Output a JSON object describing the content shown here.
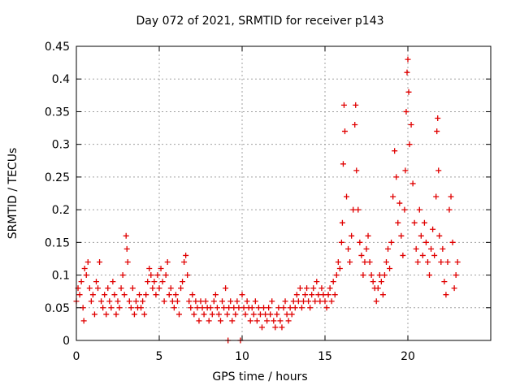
{
  "chart_data": {
    "type": "scatter",
    "title": "Day 072 of 2021, SRMTID for receiver p143",
    "xlabel": "GPS time / hours",
    "ylabel": "SRMTID / TECUs",
    "xlim": [
      0,
      25
    ],
    "ylim": [
      0,
      0.45
    ],
    "xticks": [
      0,
      5,
      10,
      15,
      20
    ],
    "yticks": [
      0,
      0.05,
      0.1,
      0.15,
      0.2,
      0.25,
      0.3,
      0.35,
      0.4,
      0.45
    ],
    "ytick_labels": [
      "0",
      "0.05",
      "0.1",
      "0.15",
      "0.2",
      "0.25",
      "0.3",
      "0.35",
      "0.4",
      "0.45"
    ],
    "grid": true,
    "marker": "+",
    "series": [
      {
        "name": "SRMTID",
        "color": "#e00000",
        "points": [
          [
            0.0,
            0.06
          ],
          [
            0.1,
            0.08
          ],
          [
            0.2,
            0.07
          ],
          [
            0.3,
            0.09
          ],
          [
            0.4,
            0.05
          ],
          [
            0.45,
            0.03
          ],
          [
            0.5,
            0.11
          ],
          [
            0.6,
            0.1
          ],
          [
            0.7,
            0.12
          ],
          [
            0.8,
            0.08
          ],
          [
            0.9,
            0.06
          ],
          [
            1.0,
            0.07
          ],
          [
            1.1,
            0.04
          ],
          [
            1.2,
            0.09
          ],
          [
            1.3,
            0.08
          ],
          [
            1.4,
            0.12
          ],
          [
            1.5,
            0.06
          ],
          [
            1.6,
            0.05
          ],
          [
            1.7,
            0.07
          ],
          [
            1.8,
            0.04
          ],
          [
            1.9,
            0.08
          ],
          [
            2.0,
            0.06
          ],
          [
            2.1,
            0.05
          ],
          [
            2.2,
            0.09
          ],
          [
            2.3,
            0.07
          ],
          [
            2.4,
            0.04
          ],
          [
            2.5,
            0.06
          ],
          [
            2.6,
            0.05
          ],
          [
            2.7,
            0.08
          ],
          [
            2.8,
            0.1
          ],
          [
            2.9,
            0.07
          ],
          [
            3.0,
            0.16
          ],
          [
            3.05,
            0.14
          ],
          [
            3.1,
            0.12
          ],
          [
            3.2,
            0.06
          ],
          [
            3.3,
            0.05
          ],
          [
            3.4,
            0.08
          ],
          [
            3.5,
            0.04
          ],
          [
            3.6,
            0.06
          ],
          [
            3.7,
            0.05
          ],
          [
            3.8,
            0.07
          ],
          [
            3.9,
            0.05
          ],
          [
            4.0,
            0.06
          ],
          [
            4.1,
            0.04
          ],
          [
            4.2,
            0.07
          ],
          [
            4.3,
            0.09
          ],
          [
            4.4,
            0.11
          ],
          [
            4.5,
            0.1
          ],
          [
            4.6,
            0.08
          ],
          [
            4.7,
            0.09
          ],
          [
            4.8,
            0.07
          ],
          [
            4.9,
            0.1
          ],
          [
            5.0,
            0.08
          ],
          [
            5.1,
            0.11
          ],
          [
            5.2,
            0.09
          ],
          [
            5.3,
            0.06
          ],
          [
            5.4,
            0.1
          ],
          [
            5.5,
            0.12
          ],
          [
            5.6,
            0.07
          ],
          [
            5.7,
            0.08
          ],
          [
            5.8,
            0.06
          ],
          [
            5.9,
            0.05
          ],
          [
            6.0,
            0.07
          ],
          [
            6.1,
            0.06
          ],
          [
            6.2,
            0.04
          ],
          [
            6.3,
            0.08
          ],
          [
            6.4,
            0.09
          ],
          [
            6.5,
            0.12
          ],
          [
            6.6,
            0.13
          ],
          [
            6.7,
            0.1
          ],
          [
            6.8,
            0.06
          ],
          [
            6.9,
            0.05
          ],
          [
            7.0,
            0.07
          ],
          [
            7.1,
            0.04
          ],
          [
            7.2,
            0.06
          ],
          [
            7.3,
            0.05
          ],
          [
            7.4,
            0.03
          ],
          [
            7.5,
            0.06
          ],
          [
            7.6,
            0.05
          ],
          [
            7.7,
            0.04
          ],
          [
            7.8,
            0.06
          ],
          [
            7.9,
            0.05
          ],
          [
            8.0,
            0.03
          ],
          [
            8.1,
            0.05
          ],
          [
            8.2,
            0.04
          ],
          [
            8.3,
            0.06
          ],
          [
            8.4,
            0.07
          ],
          [
            8.5,
            0.05
          ],
          [
            8.6,
            0.04
          ],
          [
            8.7,
            0.03
          ],
          [
            8.8,
            0.06
          ],
          [
            8.9,
            0.05
          ],
          [
            9.0,
            0.08
          ],
          [
            9.1,
            0.04
          ],
          [
            9.15,
            0.0
          ],
          [
            9.2,
            0.05
          ],
          [
            9.3,
            0.06
          ],
          [
            9.4,
            0.03
          ],
          [
            9.5,
            0.05
          ],
          [
            9.6,
            0.04
          ],
          [
            9.7,
            0.06
          ],
          [
            9.8,
            0.05
          ],
          [
            9.9,
            0.0
          ],
          [
            10.0,
            0.07
          ],
          [
            10.1,
            0.05
          ],
          [
            10.2,
            0.04
          ],
          [
            10.3,
            0.06
          ],
          [
            10.4,
            0.05
          ],
          [
            10.5,
            0.03
          ],
          [
            10.6,
            0.05
          ],
          [
            10.7,
            0.04
          ],
          [
            10.8,
            0.06
          ],
          [
            10.9,
            0.03
          ],
          [
            11.0,
            0.05
          ],
          [
            11.1,
            0.04
          ],
          [
            11.2,
            0.02
          ],
          [
            11.3,
            0.05
          ],
          [
            11.4,
            0.04
          ],
          [
            11.5,
            0.03
          ],
          [
            11.6,
            0.05
          ],
          [
            11.7,
            0.04
          ],
          [
            11.8,
            0.06
          ],
          [
            11.9,
            0.03
          ],
          [
            12.0,
            0.02
          ],
          [
            12.1,
            0.04
          ],
          [
            12.2,
            0.05
          ],
          [
            12.3,
            0.03
          ],
          [
            12.4,
            0.02
          ],
          [
            12.5,
            0.05
          ],
          [
            12.6,
            0.06
          ],
          [
            12.7,
            0.04
          ],
          [
            12.8,
            0.03
          ],
          [
            12.9,
            0.05
          ],
          [
            13.0,
            0.04
          ],
          [
            13.1,
            0.06
          ],
          [
            13.2,
            0.05
          ],
          [
            13.3,
            0.07
          ],
          [
            13.4,
            0.06
          ],
          [
            13.5,
            0.08
          ],
          [
            13.6,
            0.05
          ],
          [
            13.7,
            0.06
          ],
          [
            13.8,
            0.07
          ],
          [
            13.9,
            0.08
          ],
          [
            14.0,
            0.06
          ],
          [
            14.1,
            0.05
          ],
          [
            14.2,
            0.07
          ],
          [
            14.3,
            0.08
          ],
          [
            14.4,
            0.06
          ],
          [
            14.5,
            0.09
          ],
          [
            14.6,
            0.07
          ],
          [
            14.7,
            0.06
          ],
          [
            14.8,
            0.08
          ],
          [
            14.9,
            0.07
          ],
          [
            15.0,
            0.06
          ],
          [
            15.1,
            0.05
          ],
          [
            15.2,
            0.07
          ],
          [
            15.3,
            0.08
          ],
          [
            15.4,
            0.06
          ],
          [
            15.5,
            0.09
          ],
          [
            15.6,
            0.07
          ],
          [
            15.7,
            0.1
          ],
          [
            15.8,
            0.12
          ],
          [
            15.9,
            0.11
          ],
          [
            16.0,
            0.15
          ],
          [
            16.05,
            0.18
          ],
          [
            16.1,
            0.27
          ],
          [
            16.15,
            0.36
          ],
          [
            16.2,
            0.32
          ],
          [
            16.3,
            0.22
          ],
          [
            16.4,
            0.14
          ],
          [
            16.5,
            0.12
          ],
          [
            16.6,
            0.16
          ],
          [
            16.7,
            0.2
          ],
          [
            16.8,
            0.33
          ],
          [
            16.85,
            0.36
          ],
          [
            16.9,
            0.26
          ],
          [
            17.0,
            0.2
          ],
          [
            17.1,
            0.15
          ],
          [
            17.2,
            0.13
          ],
          [
            17.3,
            0.1
          ],
          [
            17.4,
            0.12
          ],
          [
            17.5,
            0.14
          ],
          [
            17.6,
            0.16
          ],
          [
            17.7,
            0.12
          ],
          [
            17.8,
            0.1
          ],
          [
            17.9,
            0.09
          ],
          [
            18.0,
            0.08
          ],
          [
            18.1,
            0.06
          ],
          [
            18.2,
            0.08
          ],
          [
            18.3,
            0.1
          ],
          [
            18.4,
            0.09
          ],
          [
            18.5,
            0.07
          ],
          [
            18.6,
            0.1
          ],
          [
            18.7,
            0.12
          ],
          [
            18.8,
            0.14
          ],
          [
            18.9,
            0.11
          ],
          [
            19.0,
            0.15
          ],
          [
            19.1,
            0.22
          ],
          [
            19.2,
            0.29
          ],
          [
            19.3,
            0.25
          ],
          [
            19.4,
            0.18
          ],
          [
            19.5,
            0.21
          ],
          [
            19.6,
            0.16
          ],
          [
            19.7,
            0.13
          ],
          [
            19.8,
            0.2
          ],
          [
            19.85,
            0.26
          ],
          [
            19.9,
            0.35
          ],
          [
            19.95,
            0.41
          ],
          [
            20.0,
            0.43
          ],
          [
            20.05,
            0.38
          ],
          [
            20.1,
            0.3
          ],
          [
            20.2,
            0.33
          ],
          [
            20.3,
            0.24
          ],
          [
            20.4,
            0.18
          ],
          [
            20.5,
            0.14
          ],
          [
            20.6,
            0.12
          ],
          [
            20.7,
            0.2
          ],
          [
            20.8,
            0.16
          ],
          [
            20.9,
            0.13
          ],
          [
            21.0,
            0.18
          ],
          [
            21.1,
            0.15
          ],
          [
            21.2,
            0.12
          ],
          [
            21.3,
            0.1
          ],
          [
            21.4,
            0.14
          ],
          [
            21.5,
            0.17
          ],
          [
            21.6,
            0.13
          ],
          [
            21.7,
            0.22
          ],
          [
            21.75,
            0.32
          ],
          [
            21.8,
            0.34
          ],
          [
            21.85,
            0.26
          ],
          [
            21.9,
            0.16
          ],
          [
            22.0,
            0.12
          ],
          [
            22.1,
            0.14
          ],
          [
            22.2,
            0.09
          ],
          [
            22.3,
            0.07
          ],
          [
            22.4,
            0.12
          ],
          [
            22.5,
            0.2
          ],
          [
            22.6,
            0.22
          ],
          [
            22.7,
            0.15
          ],
          [
            22.8,
            0.08
          ],
          [
            22.9,
            0.1
          ],
          [
            23.0,
            0.12
          ]
        ]
      }
    ]
  }
}
